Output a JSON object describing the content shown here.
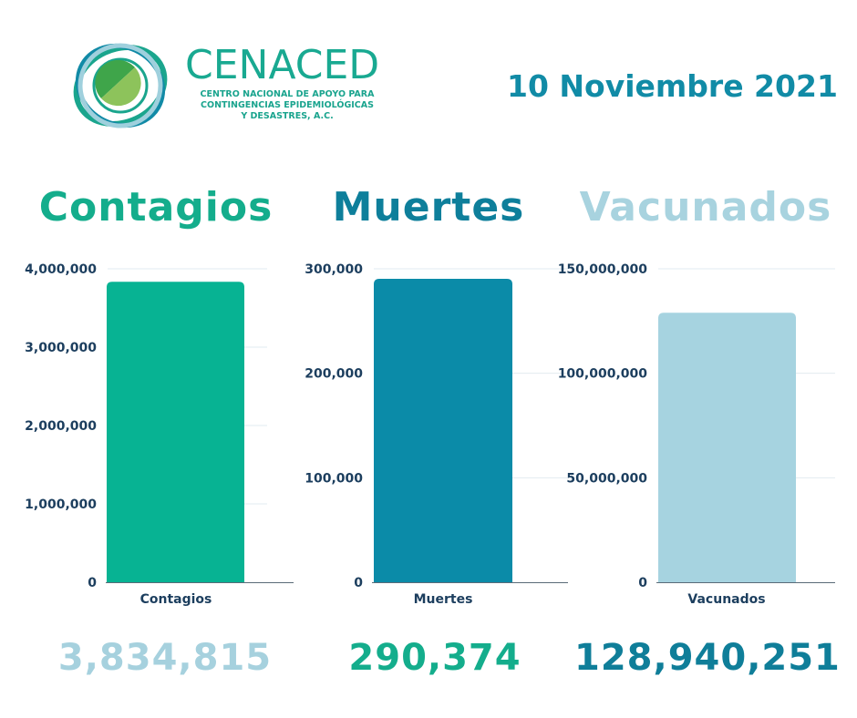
{
  "brand": {
    "name": "CENACED",
    "subtitle_lines": [
      "CENTRO NACIONAL DE APOYO PARA",
      "CONTINGENCIAS EPIDEMIOLÓGICAS",
      "Y DESASTRES, A.C."
    ]
  },
  "date": "10 Noviembre 2021",
  "colors": {
    "contagios": "#07b393",
    "muertes": "#0b8ba8",
    "vacunados": "#a6d3e0",
    "axis_text": "#1c3e5e",
    "grid": "#e2ebf0"
  },
  "headings": [
    {
      "text": "Contagios",
      "color": "#14ad8c"
    },
    {
      "text": "Muertes",
      "color": "#0e7f9b"
    },
    {
      "text": "Vacunados",
      "color": "#a8d3df"
    }
  ],
  "chart_data": [
    {
      "type": "bar",
      "categories": [
        "Contagios"
      ],
      "values": [
        3834815
      ],
      "ylim": [
        0,
        4000000
      ],
      "yticks": [
        "0",
        "1,000,000",
        "2,000,000",
        "3,000,000",
        "4,000,000"
      ],
      "color": "#07b393",
      "grid": true
    },
    {
      "type": "bar",
      "categories": [
        "Muertes"
      ],
      "values": [
        290374
      ],
      "ylim": [
        0,
        300000
      ],
      "yticks": [
        "0",
        "100,000",
        "200,000",
        "300,000"
      ],
      "color": "#0b8ba8",
      "grid": true
    },
    {
      "type": "bar",
      "categories": [
        "Vacunados"
      ],
      "values": [
        128940251
      ],
      "ylim": [
        0,
        150000000
      ],
      "yticks": [
        "0",
        "50,000,000",
        "100,000,000",
        "150,000,000"
      ],
      "color": "#a6d3e0",
      "grid": true
    }
  ],
  "totals": [
    {
      "text": "3,834,815",
      "color": "#a6d1de"
    },
    {
      "text": "290,374",
      "color": "#14ad8c"
    },
    {
      "text": "128,940,251",
      "color": "#0f7e99"
    }
  ]
}
